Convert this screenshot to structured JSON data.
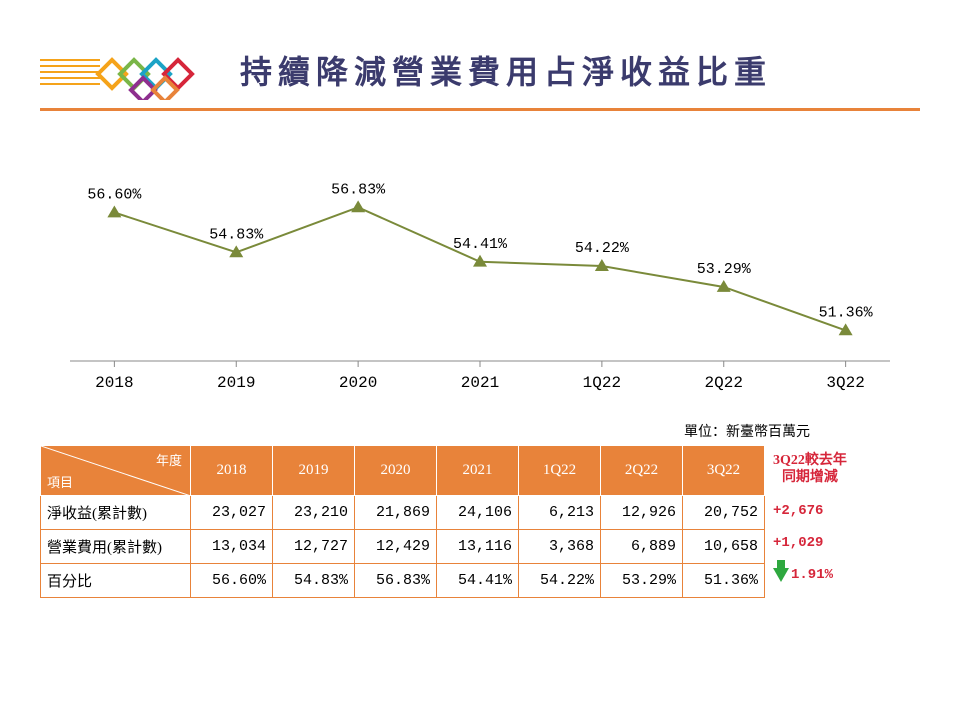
{
  "title": "持續降減營業費用占淨收益比重",
  "logo": {
    "bar_colors": [
      "#f5a31a",
      "#f5a31a",
      "#f5a31a",
      "#f5a31a",
      "#f5a31a"
    ],
    "diamond_colors": [
      "#f5a31a",
      "#7ab648",
      "#1ba3c6",
      "#d6263a",
      "#8e2f8e",
      "#e8833a"
    ]
  },
  "rule_color": "#e8833a",
  "chart": {
    "type": "line",
    "categories": [
      "2018",
      "2019",
      "2020",
      "2021",
      "1Q22",
      "2Q22",
      "3Q22"
    ],
    "values": [
      56.6,
      54.83,
      56.83,
      54.41,
      54.22,
      53.29,
      51.36
    ],
    "value_labels": [
      "56.60%",
      "54.83%",
      "56.83%",
      "54.41%",
      "54.22%",
      "53.29%",
      "51.36%"
    ],
    "line_color": "#7a8a3a",
    "marker_color": "#7a8a3a",
    "marker_style": "triangle",
    "marker_size": 7,
    "line_width": 2,
    "ylim": [
      50,
      58
    ],
    "axis_color": "#888888",
    "axis_label_fontsize": 16,
    "data_label_fontsize": 15,
    "data_label_font": "Courier New",
    "xaxis_label_font": "Courier New",
    "background_color": "#ffffff"
  },
  "unit_label": "單位：新臺幣百萬元",
  "table": {
    "corner_top": "年度",
    "corner_bottom": "項目",
    "header_bg": "#e8833a",
    "header_fg": "#ffffff",
    "border_color": "#e8833a",
    "columns": [
      "2018",
      "2019",
      "2020",
      "2021",
      "1Q22",
      "2Q22",
      "3Q22"
    ],
    "rows": [
      {
        "label": "淨收益(累計數)",
        "cells": [
          "23,027",
          "23,210",
          "21,869",
          "24,106",
          "6,213",
          "12,926",
          "20,752"
        ]
      },
      {
        "label": "營業費用(累計數)",
        "cells": [
          "13,034",
          "12,727",
          "12,429",
          "13,116",
          "3,368",
          "6,889",
          "10,658"
        ]
      },
      {
        "label": "百分比",
        "cells": [
          "56.60%",
          "54.83%",
          "56.83%",
          "54.41%",
          "54.22%",
          "53.29%",
          "51.36%"
        ]
      }
    ]
  },
  "delta": {
    "header_line1": "3Q22較去年",
    "header_line2": "同期增減",
    "color": "#d6263a",
    "rows": [
      "+2,676",
      "+1,029",
      "1.91%"
    ],
    "arrow_row_index": 2,
    "arrow_color": "#2ea83f"
  }
}
